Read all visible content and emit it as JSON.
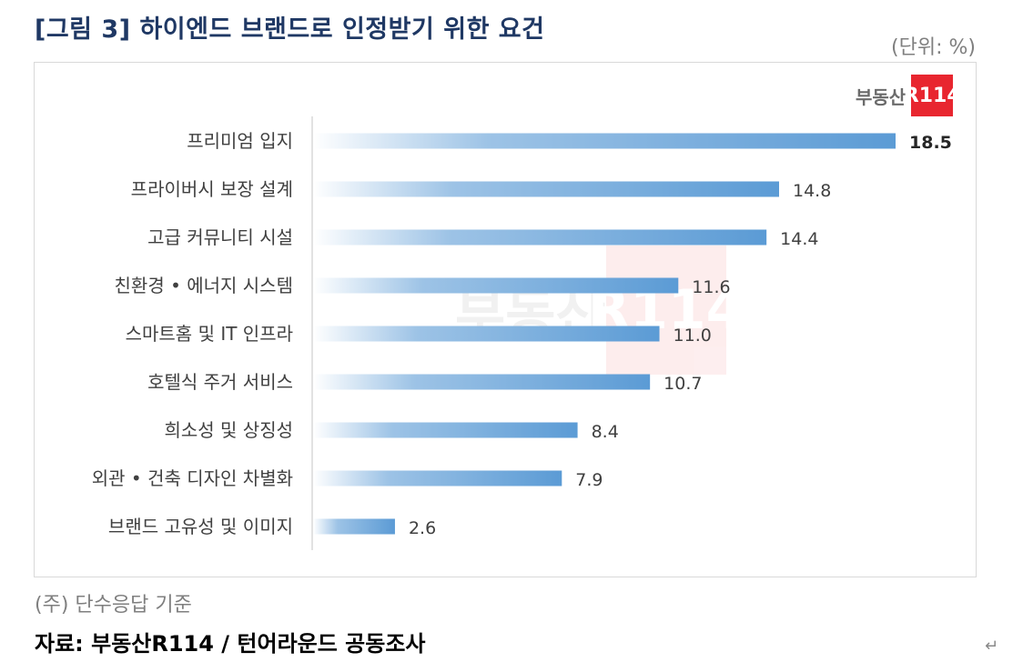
{
  "title": "[그림 3] 하이엔드 브랜드로 인정받기 위한 요건",
  "unit": "(단위: %)",
  "logo": {
    "text": "부동산",
    "badge": "R114",
    "brand_color": "#e8262f"
  },
  "note": "(주) 단수응답 기준",
  "source": "자료: 부동산R114 / 턴어라운드 공동조사",
  "chart_data": {
    "type": "bar",
    "orientation": "horizontal",
    "categories": [
      "프리미엄 입지",
      "프라이버시 보장 설계",
      "고급 커뮤니티 시설",
      "친환경·에너지 시스템",
      "스마트홈 및 IT 인프라",
      "호텔식 주거 서비스",
      "희소성 및 상징성",
      "외관·건축 디자인 차별화",
      "브랜드 고유성 및 이미지"
    ],
    "values": [
      18.5,
      14.8,
      14.4,
      11.6,
      11.0,
      10.7,
      8.4,
      7.9,
      2.6
    ],
    "value_labels": [
      "18.5",
      "14.8",
      "14.4",
      "11.6",
      "11.0",
      "10.7",
      "8.4",
      "7.9",
      "2.6"
    ],
    "xlim": [
      0,
      18.5
    ],
    "grid": false,
    "bar_color": "#5b9bd5",
    "fill": "gradient white to blue",
    "highlight_first_label_bold": true
  }
}
